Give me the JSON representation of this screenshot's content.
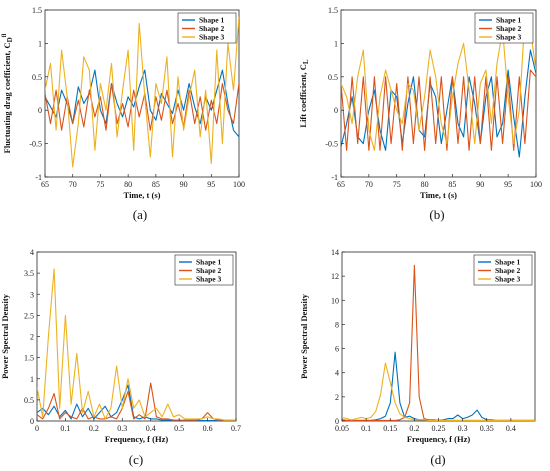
{
  "colors": {
    "shape1": "#0072BD",
    "shape2": "#D95319",
    "shape3": "#EDB120"
  },
  "chart_data": [
    {
      "id": "a",
      "type": "line",
      "caption": "(a)",
      "xlabel": "Time, t (s)",
      "ylabel": "Fluctuating drag coefficient, C",
      "ylabel_sup": "fl",
      "ylabel_sub": "D",
      "xlim": [
        65,
        100
      ],
      "ylim": [
        -1,
        1.5
      ],
      "xticks": [
        "65",
        "70",
        "75",
        "80",
        "85",
        "90",
        "95",
        "100"
      ],
      "yticks": [
        "-1",
        "-0.5",
        "0",
        "0.5",
        "1",
        "1.5"
      ],
      "legend": [
        "Shape 1",
        "Shape 2",
        "Shape 3"
      ],
      "legend_position": "top-right",
      "x": [
        65,
        66,
        67,
        68,
        69,
        70,
        71,
        72,
        73,
        74,
        75,
        76,
        77,
        78,
        79,
        80,
        81,
        82,
        83,
        84,
        85,
        86,
        87,
        88,
        89,
        90,
        91,
        92,
        93,
        94,
        95,
        96,
        97,
        98,
        99,
        100
      ],
      "series": [
        {
          "name": "Shape 1",
          "values": [
            0.2,
            0.05,
            -0.1,
            0.3,
            0.1,
            -0.2,
            0.35,
            0.1,
            0.25,
            0.6,
            0.0,
            -0.2,
            0.4,
            0.1,
            -0.1,
            0.2,
            0.05,
            0.35,
            0.6,
            0.0,
            -0.15,
            0.25,
            0.1,
            -0.05,
            0.3,
            0.0,
            0.4,
            0.05,
            -0.2,
            0.2,
            0.0,
            0.3,
            0.6,
            0.1,
            -0.3,
            -0.4
          ]
        },
        {
          "name": "Shape 2",
          "values": [
            0.25,
            -0.2,
            0.3,
            -0.3,
            0.2,
            -0.2,
            0.15,
            -0.25,
            0.3,
            -0.1,
            0.2,
            -0.3,
            0.4,
            -0.2,
            0.1,
            -0.25,
            0.3,
            -0.1,
            0.25,
            -0.3,
            0.2,
            -0.15,
            0.3,
            -0.2,
            0.1,
            -0.25,
            0.3,
            -0.2,
            0.2,
            -0.3,
            0.15,
            -0.2,
            0.4,
            0.0,
            -0.2,
            0.4
          ]
        },
        {
          "name": "Shape 3",
          "values": [
            0.3,
            0.7,
            -0.3,
            0.9,
            0.2,
            -0.85,
            -0.2,
            0.8,
            0.6,
            -0.6,
            0.4,
            0.0,
            0.7,
            -0.4,
            0.3,
            0.9,
            -0.6,
            1.3,
            0.2,
            -0.7,
            0.4,
            0.1,
            0.8,
            -0.7,
            0.5,
            -0.3,
            0.2,
            0.6,
            -0.4,
            0.3,
            -0.8,
            0.9,
            -0.5,
            1.0,
            0.3,
            1.4
          ]
        }
      ]
    },
    {
      "id": "b",
      "type": "line",
      "caption": "(b)",
      "xlabel": "Time, t (s)",
      "ylabel": "Lift coefficient, C",
      "ylabel_sup": "",
      "ylabel_sub": "L",
      "xlim": [
        65,
        100
      ],
      "ylim": [
        -1,
        1.5
      ],
      "xticks": [
        "65",
        "70",
        "75",
        "80",
        "85",
        "90",
        "95",
        "100"
      ],
      "yticks": [
        "-1",
        "-0.5",
        "0",
        "0.5",
        "1",
        "1.5"
      ],
      "legend": [
        "Shape 1",
        "Shape 2",
        "Shape 3"
      ],
      "legend_position": "top-right",
      "x": [
        65,
        66,
        67,
        68,
        69,
        70,
        71,
        72,
        73,
        74,
        75,
        76,
        77,
        78,
        79,
        80,
        81,
        82,
        83,
        84,
        85,
        86,
        87,
        88,
        89,
        90,
        91,
        92,
        93,
        94,
        95,
        96,
        97,
        98,
        99,
        100
      ],
      "series": [
        {
          "name": "Shape 1",
          "values": [
            -0.55,
            -0.2,
            0.2,
            -0.4,
            -0.5,
            0.0,
            0.3,
            -0.3,
            -0.6,
            0.3,
            0.2,
            -0.5,
            0.1,
            0.5,
            -0.3,
            -0.4,
            0.4,
            0.2,
            -0.5,
            0.0,
            0.5,
            -0.2,
            -0.4,
            0.5,
            0.1,
            -0.5,
            0.2,
            0.5,
            -0.4,
            -0.2,
            0.6,
            -0.1,
            -0.7,
            0.2,
            0.9,
            0.55
          ]
        },
        {
          "name": "Shape 2",
          "values": [
            0.4,
            -0.6,
            0.5,
            -0.5,
            0.5,
            -0.6,
            0.5,
            -0.6,
            0.5,
            -0.5,
            0.4,
            -0.6,
            0.5,
            -0.5,
            0.5,
            -0.6,
            0.5,
            -0.5,
            0.5,
            -0.6,
            0.5,
            -0.5,
            0.5,
            -0.6,
            0.5,
            -0.5,
            0.5,
            -0.6,
            0.5,
            -0.5,
            0.5,
            -0.6,
            0.5,
            -0.5,
            0.6,
            0.5
          ]
        },
        {
          "name": "Shape 3",
          "values": [
            0.4,
            0.2,
            -0.2,
            0.5,
            0.9,
            -0.3,
            -0.6,
            0.2,
            0.6,
            0.3,
            0.0,
            -0.2,
            0.4,
            0.3,
            -0.3,
            0.2,
            0.9,
            0.5,
            -0.2,
            -0.5,
            0.2,
            0.7,
            1.0,
            0.3,
            -0.5,
            0.4,
            0.6,
            -0.2,
            0.7,
            1.2,
            0.2,
            -0.5,
            0.0,
            1.4,
            1.2,
            0.6
          ]
        }
      ]
    },
    {
      "id": "c",
      "type": "line",
      "caption": "(c)",
      "xlabel": "Frequency, f (Hz)",
      "ylabel": "Power Spectral Density",
      "ylabel_sup": "",
      "ylabel_sub": "",
      "xlim": [
        0,
        0.7
      ],
      "ylim": [
        0,
        4
      ],
      "xticks": [
        "0",
        "0.1",
        "0.2",
        "0.3",
        "0.4",
        "0.5",
        "0.6",
        "0.7"
      ],
      "yticks": [
        "0",
        "0.5",
        "1",
        "1.5",
        "2",
        "2.5",
        "3",
        "3.5",
        "4"
      ],
      "legend": [
        "Shape 1",
        "Shape 2",
        "Shape 3"
      ],
      "legend_position": "top-right",
      "x": [
        0,
        0.02,
        0.04,
        0.06,
        0.08,
        0.1,
        0.12,
        0.14,
        0.16,
        0.18,
        0.2,
        0.22,
        0.24,
        0.26,
        0.28,
        0.3,
        0.32,
        0.34,
        0.36,
        0.38,
        0.4,
        0.42,
        0.44,
        0.46,
        0.48,
        0.5,
        0.52,
        0.54,
        0.56,
        0.58,
        0.6,
        0.62,
        0.64,
        0.66,
        0.68,
        0.7
      ],
      "series": [
        {
          "name": "Shape 1",
          "values": [
            0.2,
            0.3,
            0.15,
            0.35,
            0.1,
            0.25,
            0.05,
            0.4,
            0.1,
            0.3,
            0.05,
            0.2,
            0.35,
            0.1,
            0.2,
            0.5,
            0.85,
            0.1,
            0.05,
            0.1,
            0.05,
            0.05,
            0.02,
            0.02,
            0.02,
            0.01,
            0.01,
            0.01,
            0.01,
            0.01,
            0.01,
            0.01,
            0.01,
            0.01,
            0.01,
            0.01
          ]
        },
        {
          "name": "Shape 2",
          "values": [
            0.15,
            0.05,
            0.3,
            0.65,
            0.05,
            0.2,
            0.1,
            0.05,
            0.3,
            0.05,
            0.1,
            0.05,
            0.05,
            0.1,
            0.05,
            0.3,
            0.7,
            0.05,
            0.15,
            0.05,
            0.9,
            0.1,
            0.05,
            0.05,
            0.02,
            0.02,
            0.02,
            0.02,
            0.02,
            0.05,
            0.2,
            0.05,
            0.02,
            0.02,
            0.02,
            0.02
          ]
        },
        {
          "name": "Shape 3",
          "values": [
            0.8,
            0.1,
            2.0,
            3.6,
            0.3,
            2.5,
            0.4,
            1.6,
            0.2,
            0.7,
            0.1,
            0.4,
            0.05,
            0.3,
            1.3,
            0.3,
            1.0,
            0.3,
            0.5,
            0.1,
            0.2,
            0.3,
            0.1,
            0.4,
            0.1,
            0.15,
            0.05,
            0.05,
            0.05,
            0.05,
            0.1,
            0.05,
            0.05,
            0.02,
            0.02,
            0.02
          ]
        }
      ]
    },
    {
      "id": "d",
      "type": "line",
      "caption": "(d)",
      "xlabel": "Frequency, f (Hz)",
      "ylabel": "Power Spectral Density",
      "ylabel_sup": "",
      "ylabel_sub": "",
      "xlim": [
        0.05,
        0.45
      ],
      "ylim": [
        0,
        14
      ],
      "xticks": [
        "0.05",
        "0.1",
        "0.15",
        "0.2",
        "0.25",
        "0.3",
        "0.35",
        "0.4"
      ],
      "yticks": [
        "0",
        "2",
        "4",
        "6",
        "8",
        "10",
        "12",
        "14"
      ],
      "legend": [
        "Shape 1",
        "Shape 2",
        "Shape 3"
      ],
      "legend_position": "top-right",
      "x": [
        0.05,
        0.06,
        0.07,
        0.08,
        0.09,
        0.1,
        0.11,
        0.12,
        0.13,
        0.14,
        0.15,
        0.16,
        0.17,
        0.18,
        0.19,
        0.2,
        0.21,
        0.22,
        0.23,
        0.24,
        0.25,
        0.26,
        0.27,
        0.28,
        0.29,
        0.3,
        0.31,
        0.32,
        0.33,
        0.34,
        0.35,
        0.36,
        0.37,
        0.38,
        0.39,
        0.4,
        0.41,
        0.42,
        0.43,
        0.44,
        0.45
      ],
      "series": [
        {
          "name": "Shape 1",
          "values": [
            0.1,
            0.05,
            0.05,
            0.05,
            0.05,
            0.05,
            0.05,
            0.1,
            0.2,
            0.4,
            1.5,
            5.7,
            1.5,
            0.3,
            0.4,
            0.2,
            0.1,
            0.1,
            0.1,
            0.1,
            0.05,
            0.1,
            0.2,
            0.2,
            0.5,
            0.2,
            0.3,
            0.5,
            0.9,
            0.3,
            0.1,
            0.1,
            0.05,
            0.05,
            0.05,
            0.05,
            0.05,
            0.05,
            0.05,
            0.05,
            0.05
          ]
        },
        {
          "name": "Shape 2",
          "values": [
            0.05,
            0.05,
            0.05,
            0.05,
            0.05,
            0.05,
            0.05,
            0.05,
            0.05,
            0.05,
            0.05,
            0.05,
            0.1,
            0.3,
            1.5,
            12.9,
            2.0,
            0.2,
            0.1,
            0.05,
            0.05,
            0.05,
            0.05,
            0.05,
            0.05,
            0.05,
            0.05,
            0.05,
            0.05,
            0.05,
            0.05,
            0.05,
            0.05,
            0.05,
            0.05,
            0.05,
            0.05,
            0.05,
            0.05,
            0.05,
            0.05
          ]
        },
        {
          "name": "Shape 3",
          "values": [
            0.3,
            0.2,
            0.1,
            0.2,
            0.3,
            0.2,
            0.3,
            0.8,
            2.2,
            4.8,
            3.2,
            1.5,
            0.6,
            0.3,
            0.2,
            0.1,
            0.1,
            0.1,
            0.05,
            0.05,
            0.05,
            0.05,
            0.05,
            0.05,
            0.05,
            0.05,
            0.05,
            0.05,
            0.05,
            0.05,
            0.05,
            0.05,
            0.05,
            0.05,
            0.05,
            0.05,
            0.05,
            0.05,
            0.05,
            0.05,
            0.05
          ]
        }
      ]
    }
  ]
}
